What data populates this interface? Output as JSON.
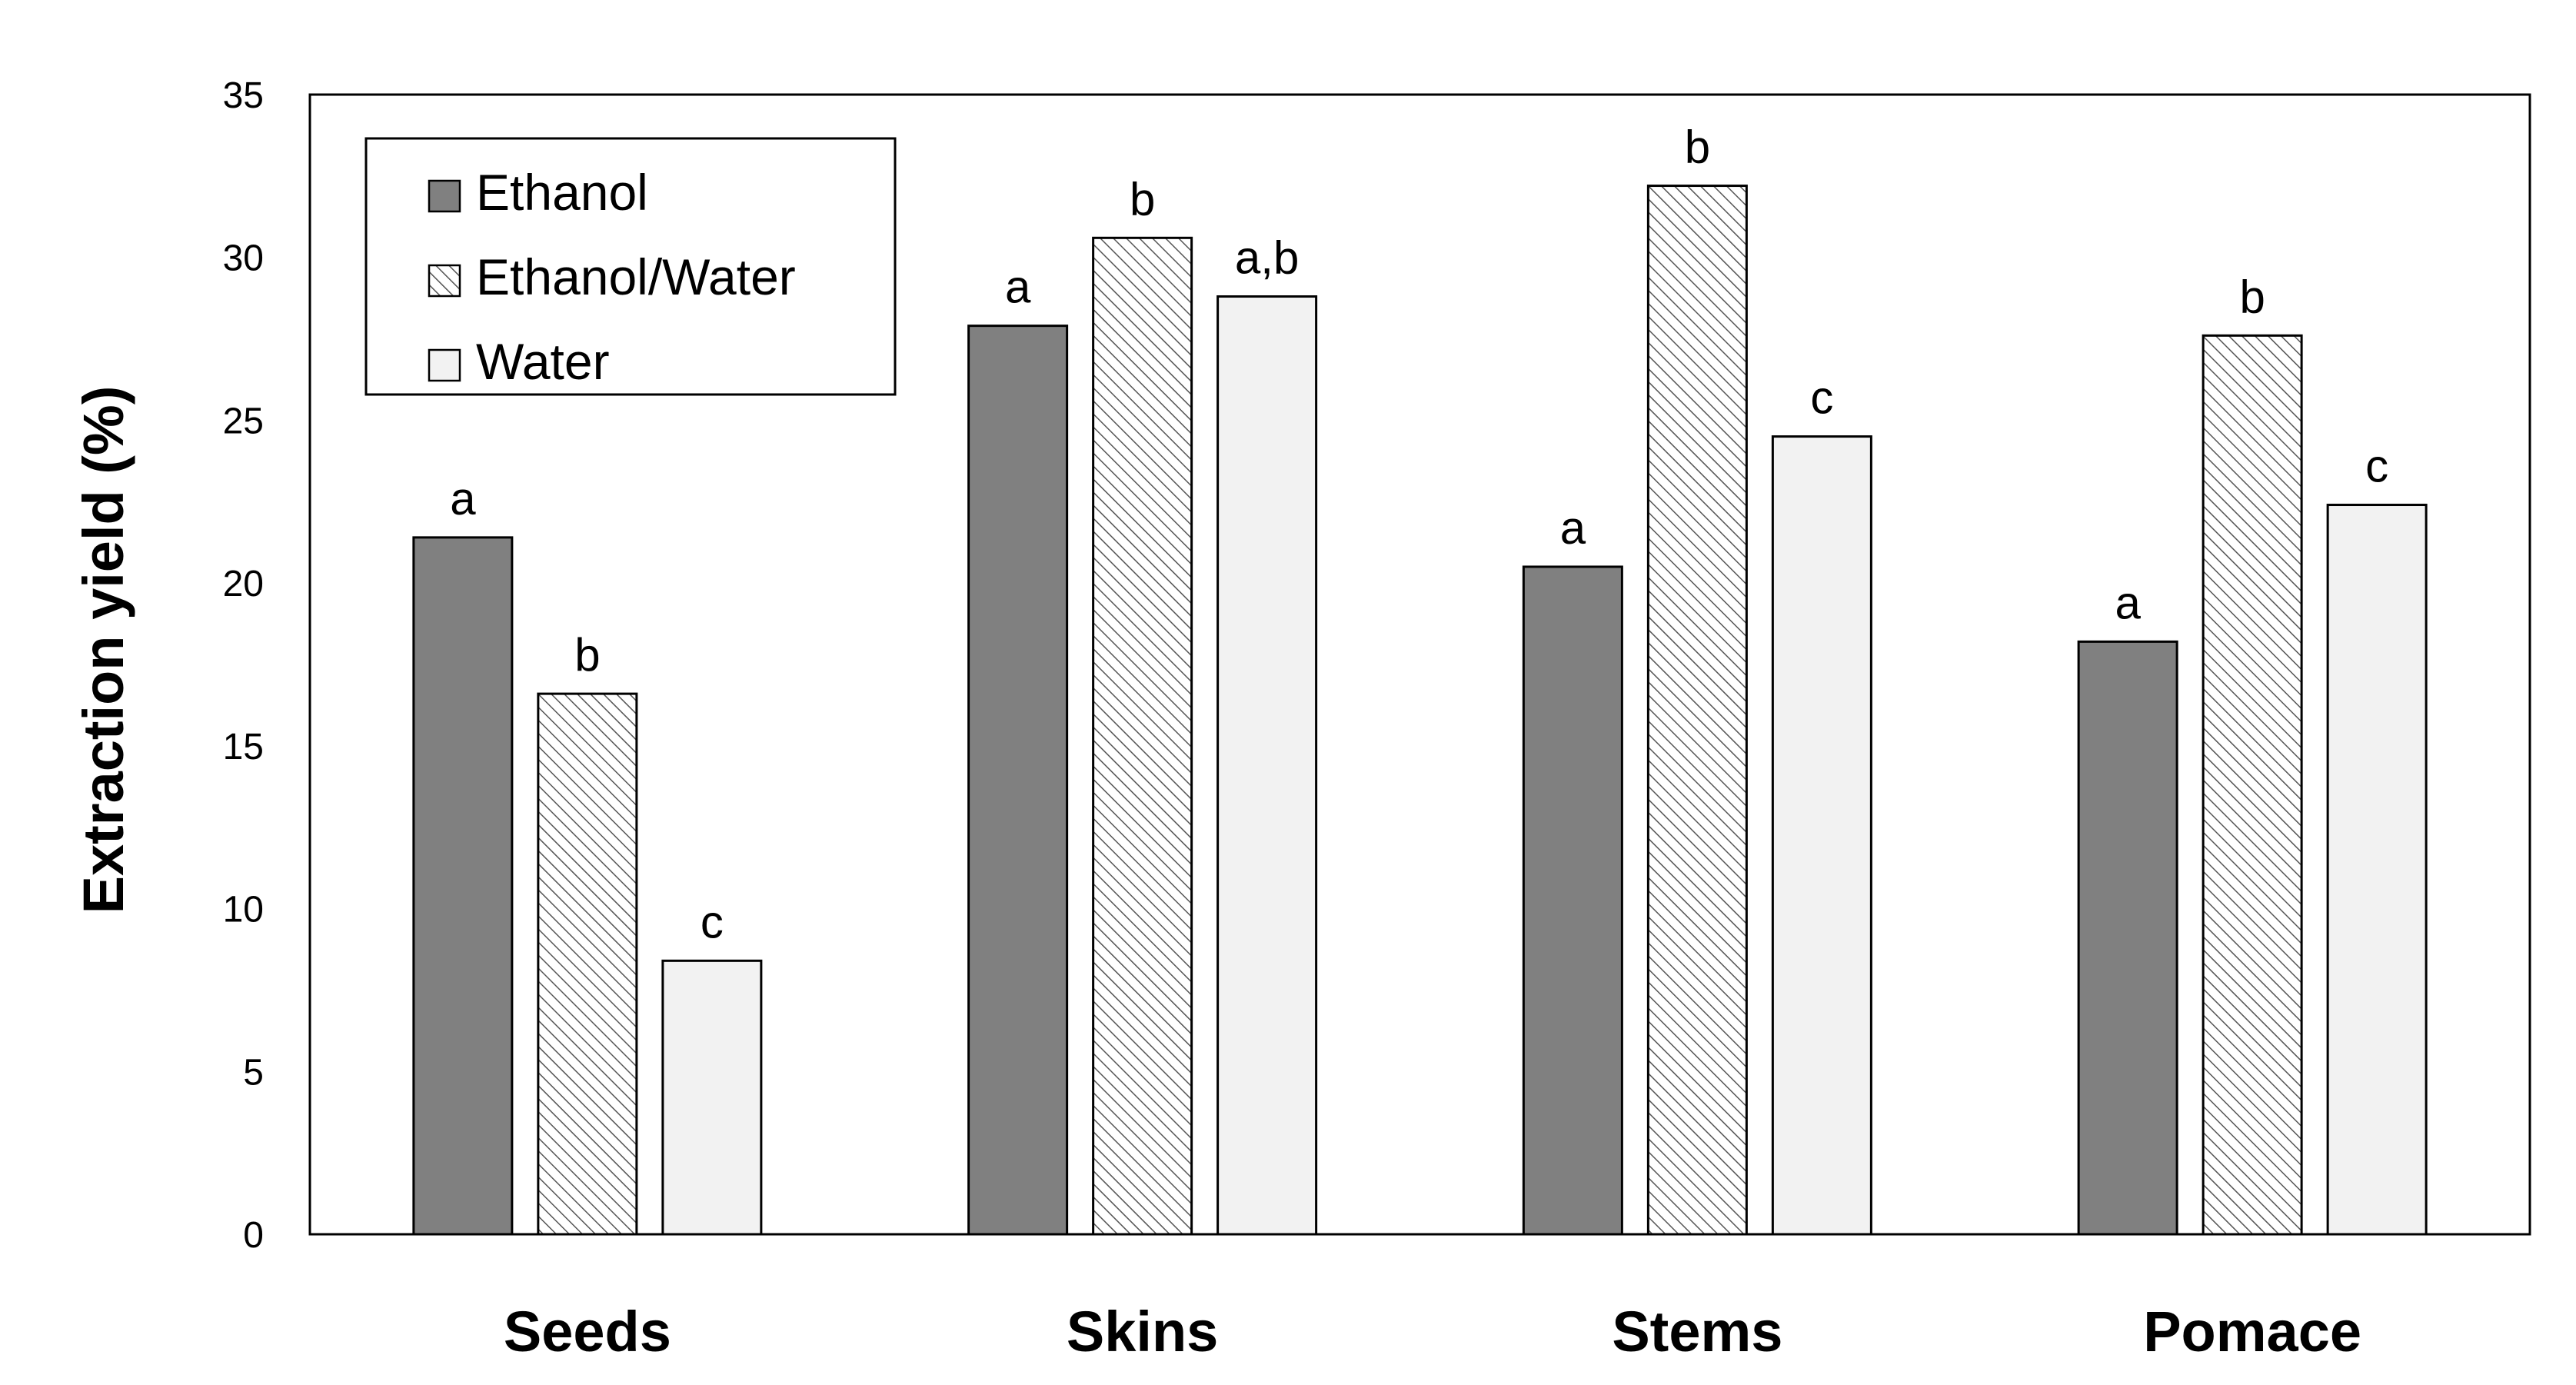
{
  "chart_data": {
    "type": "bar",
    "title": "",
    "xlabel": "",
    "ylabel": "Extraction yield (%)",
    "ylim": [
      0,
      35
    ],
    "yticks": [
      0,
      5,
      10,
      15,
      20,
      25,
      30,
      35
    ],
    "grid": false,
    "legend_position": "top-left",
    "categories": [
      "Seeds",
      "Skins",
      "Stems",
      "Pomace"
    ],
    "series": [
      {
        "name": "Ethanol",
        "style": "solid",
        "fill": "#808080",
        "values": [
          21.4,
          27.9,
          20.5,
          18.2
        ],
        "labels": [
          "a",
          "a",
          "a",
          "a"
        ]
      },
      {
        "name": "Ethanol/Water",
        "style": "hatched",
        "fill": "#ffffff",
        "values": [
          16.6,
          30.6,
          32.2,
          27.6
        ],
        "labels": [
          "b",
          "b",
          "b",
          "b"
        ]
      },
      {
        "name": "Water",
        "style": "light",
        "fill": "#f2f2f2",
        "values": [
          8.4,
          28.8,
          24.5,
          22.4
        ],
        "labels": [
          "c",
          "a,b",
          "c",
          "c"
        ]
      }
    ]
  }
}
